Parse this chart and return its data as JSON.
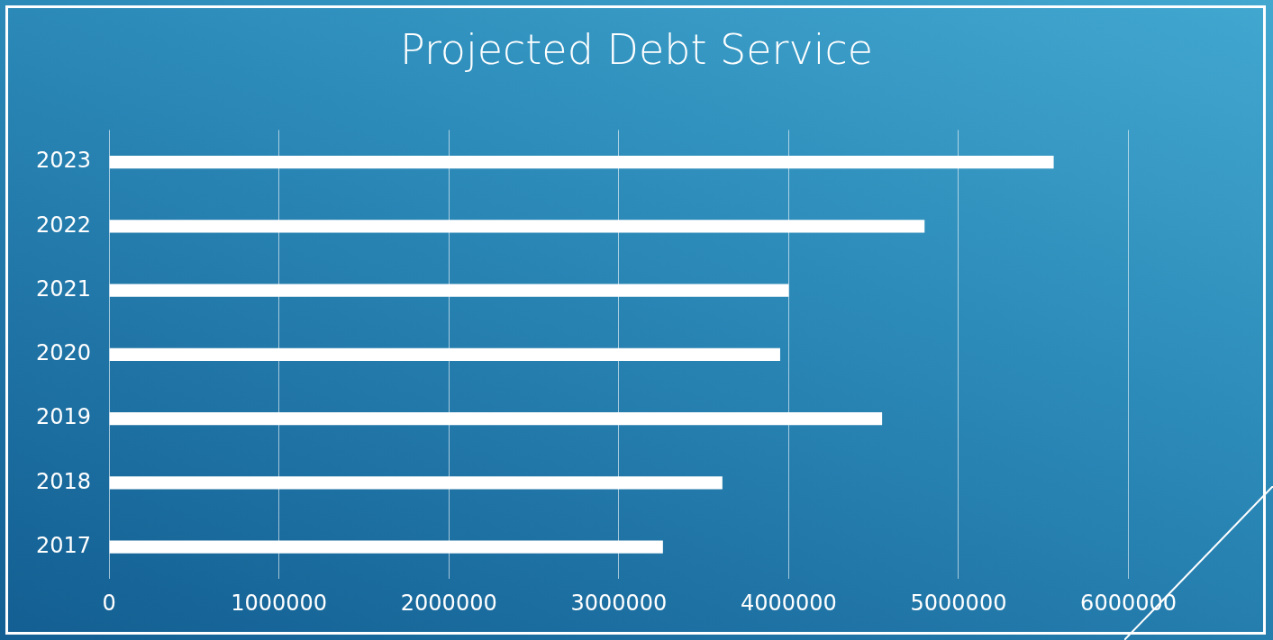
{
  "chart_data": {
    "type": "bar",
    "orientation": "horizontal",
    "title": "Projected Debt Service",
    "categories": [
      "2023",
      "2022",
      "2021",
      "2020",
      "2019",
      "2018",
      "2017"
    ],
    "values": [
      5560000,
      4800000,
      4000000,
      3950000,
      4550000,
      3610000,
      3260000
    ],
    "color": "#ffffff",
    "xlim": [
      0,
      6000000
    ],
    "xticks": [
      0,
      1000000,
      2000000,
      3000000,
      4000000,
      5000000,
      6000000
    ],
    "grid": "x",
    "legend": false
  }
}
